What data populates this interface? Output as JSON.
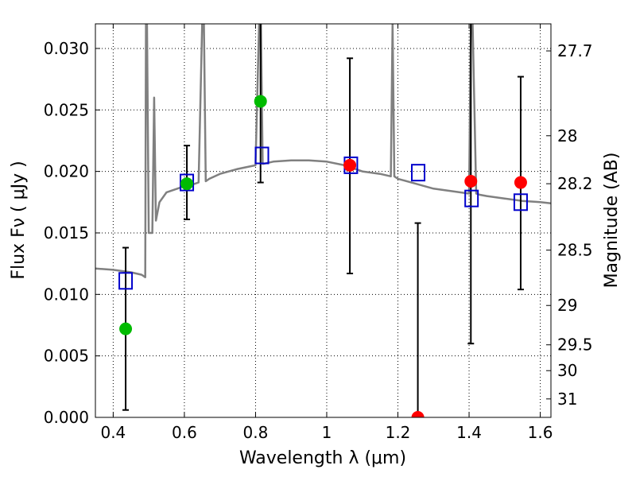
{
  "chart_data": {
    "type": "scatter",
    "xlabel": "Wavelength  λ (μm)",
    "ylabel": "Flux  Fν  ( μJy )",
    "y2label": "Magnitude (AB)",
    "xlim": [
      0.35,
      1.63
    ],
    "ylim": [
      0.0,
      0.032
    ],
    "grid": true,
    "x_ticks": [
      0.4,
      0.6,
      0.8,
      1.0,
      1.2,
      1.4,
      1.6
    ],
    "x_tick_labels": [
      "0.4",
      "0.6",
      "0.8",
      "1",
      "1.2",
      "1.4",
      "1.6"
    ],
    "y_ticks": [
      0.0,
      0.005,
      0.01,
      0.015,
      0.02,
      0.025,
      0.03
    ],
    "y_tick_labels": [
      "0.000",
      "0.005",
      "0.010",
      "0.015",
      "0.020",
      "0.025",
      "0.030"
    ],
    "y2_ticks": [
      {
        "label": "27.7",
        "flux": 0.0298
      },
      {
        "label": "28",
        "flux": 0.0229
      },
      {
        "label": "28.2",
        "flux": 0.019
      },
      {
        "label": "28.5",
        "flux": 0.0136
      },
      {
        "label": "29",
        "flux": 0.0091
      },
      {
        "label": "29.5",
        "flux": 0.0059
      },
      {
        "label": "30",
        "flux": 0.0038
      },
      {
        "label": "31",
        "flux": 0.0015
      }
    ],
    "colors": {
      "sed": "#808080",
      "model_box": "#0000cc",
      "detection": "#00bb00",
      "upper": "#ff0000",
      "errorbar": "#000000"
    },
    "sed_line": {
      "x": [
        0.35,
        0.4,
        0.45,
        0.48,
        0.49,
        0.492,
        0.495,
        0.5,
        0.51,
        0.515,
        0.52,
        0.53,
        0.55,
        0.58,
        0.6,
        0.62,
        0.64,
        0.65,
        0.655,
        0.66,
        0.67,
        0.7,
        0.75,
        0.8,
        0.81,
        0.815,
        0.82,
        0.85,
        0.9,
        0.95,
        1.0,
        1.05,
        1.1,
        1.15,
        1.18,
        1.185,
        1.19,
        1.2,
        1.25,
        1.3,
        1.35,
        1.4,
        1.405,
        1.41,
        1.42,
        1.43,
        1.45,
        1.5,
        1.55,
        1.6,
        1.63
      ],
      "y": [
        0.0121,
        0.012,
        0.0118,
        0.0116,
        0.0114,
        0.032,
        0.032,
        0.015,
        0.015,
        0.026,
        0.016,
        0.0175,
        0.0183,
        0.0186,
        0.0188,
        0.0189,
        0.0191,
        0.032,
        0.032,
        0.0192,
        0.0194,
        0.0198,
        0.0202,
        0.0205,
        0.032,
        0.032,
        0.0206,
        0.0208,
        0.0209,
        0.0209,
        0.0208,
        0.0205,
        0.02,
        0.0198,
        0.0196,
        0.032,
        0.0196,
        0.0194,
        0.019,
        0.0186,
        0.0184,
        0.0182,
        0.032,
        0.032,
        0.0182,
        0.0181,
        0.018,
        0.0178,
        0.0176,
        0.0175,
        0.0174
      ]
    },
    "model_boxes": {
      "x": [
        0.435,
        0.607,
        0.818,
        1.068,
        1.257,
        1.407,
        1.545
      ],
      "y": [
        0.0111,
        0.0191,
        0.0213,
        0.0205,
        0.0199,
        0.0178,
        0.0175
      ]
    },
    "detections": {
      "x": [
        0.435,
        0.607,
        0.814
      ],
      "y": [
        0.0072,
        0.019,
        0.0257
      ],
      "err_low": [
        0.0066,
        0.0029,
        0.0066
      ],
      "err_high": [
        0.0066,
        0.0031,
        0.0094
      ]
    },
    "upper_limits": {
      "x": [
        1.065,
        1.256,
        1.405,
        1.545
      ],
      "y": [
        0.0205,
        0.0,
        0.0192,
        0.0191
      ],
      "err_low": [
        0.0088,
        0.0,
        0.0132,
        0.0087
      ],
      "err_high": [
        0.0087,
        0.0158,
        0.0133,
        0.0086
      ]
    }
  }
}
